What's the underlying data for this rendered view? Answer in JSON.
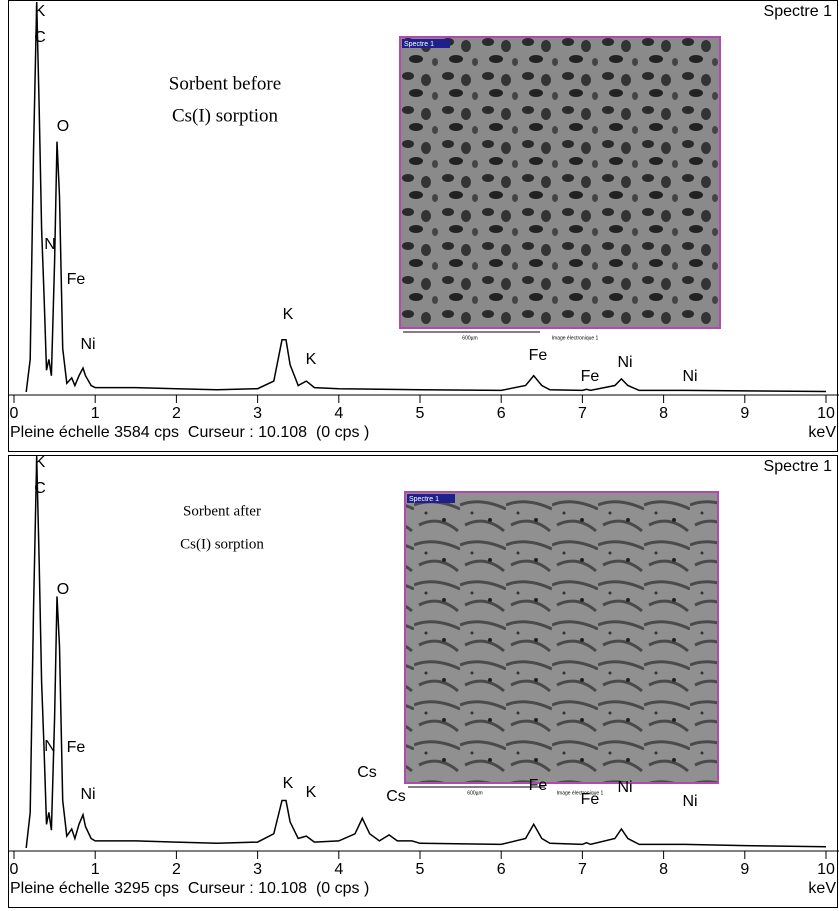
{
  "chart_data": [
    {
      "type": "line",
      "title": "Spectre 1",
      "caption": [
        "Sorbent before",
        "Cs(I) sorption"
      ],
      "footer": "Pleine échelle 3584 cps  Curseur : 10.108  (0 cps )",
      "xlabel": "keV",
      "inset": {
        "tag": "Spectre 1",
        "scale": "600µm",
        "caption": "Image électronique 1"
      },
      "annotations": [
        "K",
        "C",
        "O",
        "N",
        "Fe",
        "Ni",
        "K",
        "K",
        "Fe",
        "Fe",
        "Ni",
        "Ni"
      ],
      "xlim": [
        0,
        10
      ],
      "xticks": [
        0,
        1,
        2,
        3,
        4,
        5,
        6,
        7,
        8,
        9,
        10
      ],
      "ylim": [
        0,
        3584
      ],
      "color": "#000000",
      "x": [
        0.15,
        0.2,
        0.24,
        0.28,
        0.31,
        0.34,
        0.37,
        0.4,
        0.43,
        0.46,
        0.5,
        0.53,
        0.56,
        0.6,
        0.65,
        0.71,
        0.75,
        0.8,
        0.85,
        0.88,
        0.95,
        1.0,
        1.5,
        2.0,
        2.5,
        3.0,
        3.2,
        3.3,
        3.35,
        3.4,
        3.5,
        3.6,
        3.7,
        4.0,
        5.0,
        6.0,
        6.3,
        6.4,
        6.5,
        6.6,
        7.0,
        7.05,
        7.1,
        7.4,
        7.48,
        7.56,
        7.7,
        8.26,
        9.0,
        10.0
      ],
      "values": [
        0,
        300,
        2200,
        3584,
        2600,
        1500,
        900,
        200,
        300,
        150,
        1200,
        2300,
        1800,
        400,
        80,
        130,
        60,
        150,
        220,
        150,
        60,
        40,
        40,
        30,
        20,
        30,
        100,
        480,
        480,
        250,
        60,
        100,
        40,
        30,
        20,
        15,
        60,
        150,
        60,
        20,
        15,
        25,
        15,
        60,
        120,
        60,
        15,
        15,
        10,
        5
      ]
    },
    {
      "type": "line",
      "title": "Spectre 1",
      "caption": [
        "Sorbent after",
        "Cs(I) sorption"
      ],
      "footer": "Pleine échelle 3295 cps  Curseur : 10.108  (0 cps )",
      "xlabel": "keV",
      "inset": {
        "tag": "Spectre 1",
        "scale": "600µm",
        "caption": "Image électronique 1"
      },
      "annotations": [
        "K",
        "C",
        "O",
        "N",
        "Fe",
        "Ni",
        "K",
        "K",
        "Cs",
        "Cs",
        "Fe",
        "Fe",
        "Ni",
        "Ni"
      ],
      "xlim": [
        0,
        10
      ],
      "xticks": [
        0,
        1,
        2,
        3,
        4,
        5,
        6,
        7,
        8,
        9,
        10
      ],
      "ylim": [
        0,
        3295
      ],
      "color": "#000000",
      "x": [
        0.15,
        0.2,
        0.24,
        0.28,
        0.31,
        0.34,
        0.37,
        0.4,
        0.43,
        0.46,
        0.5,
        0.53,
        0.56,
        0.6,
        0.65,
        0.71,
        0.75,
        0.8,
        0.85,
        0.88,
        0.95,
        1.0,
        1.5,
        2.0,
        2.5,
        3.0,
        3.2,
        3.3,
        3.35,
        3.4,
        3.5,
        3.6,
        3.7,
        4.0,
        4.2,
        4.29,
        4.38,
        4.5,
        4.62,
        4.72,
        4.9,
        5.0,
        6.0,
        6.3,
        6.4,
        6.5,
        6.6,
        7.0,
        7.05,
        7.1,
        7.4,
        7.48,
        7.56,
        7.7,
        8.26,
        9.0,
        10.0
      ],
      "values": [
        0,
        300,
        2000,
        3295,
        2400,
        1400,
        850,
        200,
        300,
        150,
        1100,
        2120,
        1700,
        400,
        100,
        160,
        80,
        200,
        280,
        180,
        80,
        60,
        60,
        50,
        40,
        50,
        120,
        400,
        400,
        220,
        80,
        100,
        50,
        60,
        120,
        250,
        120,
        60,
        110,
        60,
        60,
        40,
        30,
        80,
        200,
        80,
        40,
        30,
        45,
        30,
        80,
        160,
        80,
        30,
        30,
        20,
        10
      ]
    }
  ]
}
